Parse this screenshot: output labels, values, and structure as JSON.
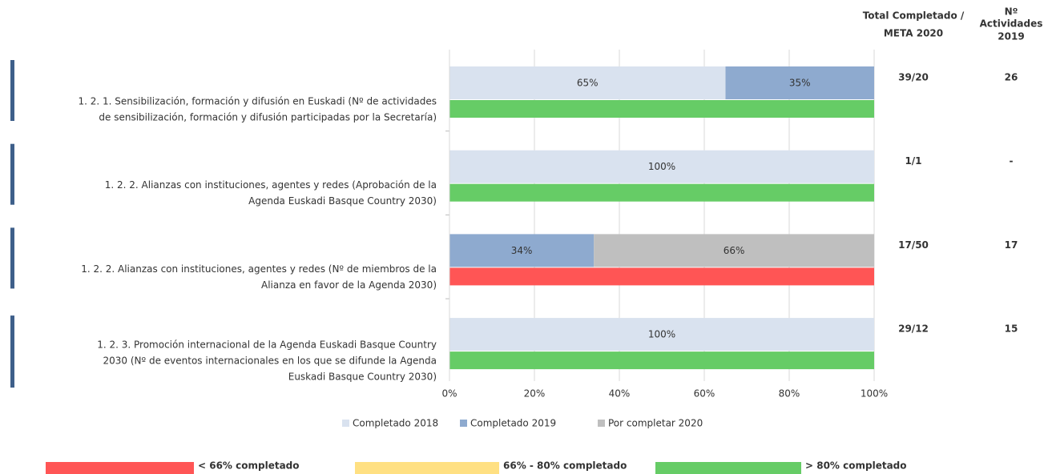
{
  "chart_data": {
    "type": "stacked-bar-horizontal",
    "categories": [
      [
        "1. 2. 1. Sensibilización, formación y difusión en Euskadi (Nº de actividades",
        "de sensibilización, formación y difusión participadas por la Secretaría)"
      ],
      [
        "1. 2. 2. Alianzas con instituciones, agentes y redes (Aprobación de la",
        "Agenda Euskadi Basque Country 2030)"
      ],
      [
        "1. 2. 2. Alianzas con instituciones, agentes y redes (Nº de miembros de la",
        "Alianza en favor de la Agenda 2030)"
      ],
      [
        "1. 2. 3. Promoción internacional de la Agenda Euskadi Basque Country",
        "2030 (Nº de eventos internacionales en los que se difunde la Agenda",
        "Euskadi Basque Country 2030)"
      ]
    ],
    "series": [
      {
        "name": "Completado 2018",
        "color": "#d9e2ef",
        "values": [
          65,
          100,
          null,
          100
        ],
        "value_labels": [
          "65%",
          "100%",
          null,
          "100%"
        ]
      },
      {
        "name": "Completado 2019",
        "color": "#8eaacf",
        "values": [
          35,
          null,
          34,
          null
        ],
        "value_labels": [
          "35%",
          null,
          "34%",
          null
        ]
      },
      {
        "name": "Por completar 2020",
        "color": "#bfbfbf",
        "values": [
          null,
          null,
          66,
          null
        ],
        "value_labels": [
          null,
          null,
          "66%",
          null
        ]
      }
    ],
    "status_colors": [
      "#66cc66",
      "#66cc66",
      "#ff5555",
      "#66cc66"
    ],
    "status_legend": [
      {
        "label": "< 66% completado",
        "color": "#ff5555"
      },
      {
        "label": "66% - 80% completado",
        "color": "#ffe082"
      },
      {
        "label": "> 80% completado",
        "color": "#66cc66"
      }
    ],
    "xlim": [
      0,
      100
    ],
    "xticks": [
      {
        "value": 0,
        "label": "0%"
      },
      {
        "value": 20,
        "label": "20%"
      },
      {
        "value": 40,
        "label": "40%"
      },
      {
        "value": 60,
        "label": "60%"
      },
      {
        "value": 80,
        "label": "80%"
      },
      {
        "value": 100,
        "label": "100%"
      }
    ],
    "grid": true,
    "columns": [
      {
        "header": [
          "Total Completado /",
          "META 2020"
        ],
        "color": "#4a6fa0",
        "values": [
          "39/20",
          "1/1",
          "17/50",
          "29/12"
        ]
      },
      {
        "header": [
          "Nº",
          "Actividades",
          "2019"
        ],
        "color": "#222222",
        "values": [
          26,
          "-",
          17,
          15
        ]
      }
    ]
  }
}
